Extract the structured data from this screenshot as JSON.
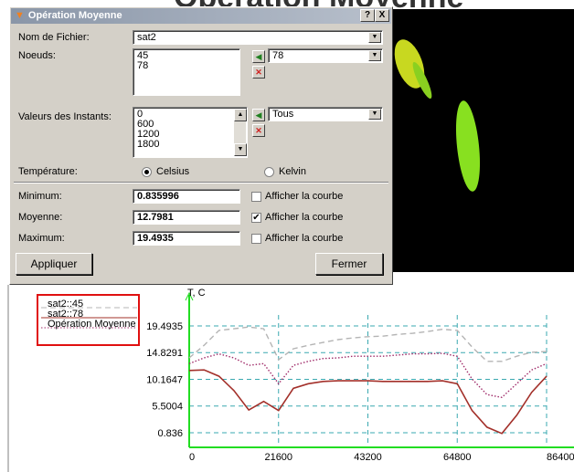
{
  "background_title": "Opération Moyenne",
  "dialog": {
    "title": "Opération Moyenne",
    "help_button": "?",
    "close_button": "X",
    "file": {
      "label": "Nom de Fichier:",
      "value": "sat2"
    },
    "nodes": {
      "label": "Noeuds:",
      "items": [
        "45",
        "78"
      ],
      "selected": "78"
    },
    "instants": {
      "label": "Valeurs des Instants:",
      "items": [
        "0",
        "600",
        "1200",
        "1800"
      ],
      "selected": "Tous"
    },
    "temperature": {
      "label": "Température:",
      "options": [
        "Celsius",
        "Kelvin"
      ],
      "checked_index": 0
    },
    "stats": [
      {
        "label": "Minimum:",
        "value": 0.835996,
        "checkbox": "Afficher la courbe",
        "checked": false
      },
      {
        "label": "Moyenne:",
        "value": 12.7981,
        "checkbox": "Afficher la courbe",
        "checked": true
      },
      {
        "label": "Maximum:",
        "value": 19.4935,
        "checkbox": "Afficher la courbe",
        "checked": false
      }
    ],
    "apply_button": "Appliquer",
    "close_label": "Fermer"
  },
  "chart_data": {
    "type": "line",
    "y_label": "T, C",
    "x": [
      0,
      3600,
      7200,
      10800,
      14400,
      18000,
      21600,
      25200,
      28800,
      32400,
      36000,
      39600,
      43200,
      46800,
      50400,
      54000,
      57600,
      61200,
      64800,
      68400,
      72000,
      75600,
      79200,
      82800,
      86400
    ],
    "series": [
      {
        "name": "sat2::45",
        "color": "#b4b4b4",
        "style": "dashed",
        "values": [
          13.9,
          16.1,
          18.7,
          19.0,
          19.3,
          19.0,
          13.6,
          15.5,
          16.1,
          16.6,
          17.1,
          17.4,
          17.6,
          17.7,
          18.0,
          18.2,
          18.5,
          18.9,
          18.7,
          15.8,
          13.3,
          13.3,
          14.2,
          14.9,
          15.0
        ]
      },
      {
        "name": "sat2::78",
        "color": "#a3302a",
        "style": "solid",
        "values": [
          11.7,
          11.8,
          10.7,
          8.2,
          4.8,
          6.3,
          4.7,
          8.6,
          9.4,
          9.8,
          9.9,
          9.9,
          9.9,
          9.8,
          9.8,
          9.8,
          9.8,
          9.9,
          9.4,
          4.7,
          1.8,
          0.7,
          3.9,
          7.9,
          10.7
        ]
      },
      {
        "name": "Opération Moyenne",
        "color": "#a02c6a",
        "style": "dotted",
        "values": [
          12.9,
          13.9,
          14.6,
          13.9,
          12.6,
          12.9,
          9.4,
          12.6,
          13.3,
          13.8,
          13.9,
          14.2,
          14.2,
          14.2,
          14.4,
          14.6,
          14.6,
          14.7,
          14.2,
          10.2,
          7.5,
          7.0,
          9.4,
          11.8,
          12.9
        ]
      }
    ],
    "xlim": [
      0,
      86400
    ],
    "ylim": [
      -1.72,
      21.4
    ],
    "xticks": [
      0,
      21600,
      43200,
      64800,
      86400
    ],
    "yticks": [
      0.836,
      5.5004,
      10.1647,
      14.8291,
      19.4935
    ],
    "grid": true,
    "grid_color": "#3aa8b0",
    "axis_color": "#22dd22",
    "legend_color": "#e01010"
  }
}
